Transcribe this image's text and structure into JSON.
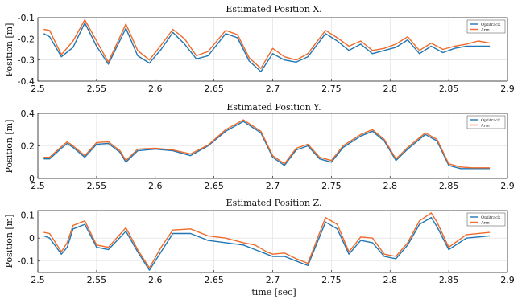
{
  "chart_data": [
    {
      "type": "line",
      "title": "Estimated Position X.",
      "ylabel": "Position [m]",
      "xlabel": "",
      "xlim": [
        2.5,
        2.9
      ],
      "ylim": [
        -0.4,
        -0.1
      ],
      "xticks": [
        "2.5",
        "2.55",
        "2.6",
        "2.65",
        "2.7",
        "2.75",
        "2.8",
        "2.85",
        "2.9"
      ],
      "xtick_values": [
        2.5,
        2.55,
        2.6,
        2.65,
        2.7,
        2.75,
        2.8,
        2.85,
        2.9
      ],
      "yticks": [
        "-0.1",
        "-0.2",
        "-0.3",
        "-0.4"
      ],
      "ytick_values": [
        -0.1,
        -0.2,
        -0.3,
        -0.4
      ],
      "grid": true,
      "legend_position": "top-right",
      "x": [
        2.505,
        2.51,
        2.52,
        2.53,
        2.54,
        2.55,
        2.56,
        2.575,
        2.585,
        2.595,
        2.605,
        2.615,
        2.625,
        2.635,
        2.645,
        2.66,
        2.67,
        2.68,
        2.69,
        2.7,
        2.71,
        2.72,
        2.73,
        2.745,
        2.755,
        2.765,
        2.775,
        2.785,
        2.795,
        2.805,
        2.815,
        2.825,
        2.835,
        2.845,
        2.855,
        2.865,
        2.875,
        2.885
      ],
      "series": [
        {
          "name": "Optitrack",
          "color": "#1f77b4",
          "values": [
            -0.175,
            -0.19,
            -0.285,
            -0.24,
            -0.125,
            -0.235,
            -0.32,
            -0.15,
            -0.28,
            -0.315,
            -0.25,
            -0.17,
            -0.225,
            -0.295,
            -0.28,
            -0.175,
            -0.195,
            -0.305,
            -0.355,
            -0.27,
            -0.3,
            -0.31,
            -0.285,
            -0.175,
            -0.21,
            -0.255,
            -0.225,
            -0.27,
            -0.255,
            -0.24,
            -0.205,
            -0.27,
            -0.235,
            -0.265,
            -0.245,
            -0.235,
            -0.235,
            -0.235
          ]
        },
        {
          "name": "Arm",
          "color": "#ee6a2a",
          "values": [
            -0.155,
            -0.16,
            -0.275,
            -0.21,
            -0.11,
            -0.21,
            -0.31,
            -0.13,
            -0.255,
            -0.3,
            -0.23,
            -0.155,
            -0.2,
            -0.28,
            -0.26,
            -0.16,
            -0.18,
            -0.29,
            -0.34,
            -0.245,
            -0.285,
            -0.3,
            -0.27,
            -0.16,
            -0.195,
            -0.235,
            -0.21,
            -0.255,
            -0.245,
            -0.225,
            -0.19,
            -0.255,
            -0.22,
            -0.25,
            -0.235,
            -0.225,
            -0.21,
            -0.22
          ]
        }
      ]
    },
    {
      "type": "line",
      "title": "Estimated Position Y.",
      "ylabel": "Position [m]",
      "xlabel": "",
      "xlim": [
        2.5,
        2.9
      ],
      "ylim": [
        0,
        0.4
      ],
      "xticks": [
        "2.5",
        "2.55",
        "2.6",
        "2.65",
        "2.7",
        "2.75",
        "2.8",
        "2.85",
        "2.9"
      ],
      "xtick_values": [
        2.5,
        2.55,
        2.6,
        2.65,
        2.7,
        2.75,
        2.8,
        2.85,
        2.9
      ],
      "yticks": [
        "0",
        "0.2",
        "0.4"
      ],
      "ytick_values": [
        0,
        0.2,
        0.4
      ],
      "grid": true,
      "legend_position": "top-right",
      "x": [
        2.505,
        2.51,
        2.52,
        2.525,
        2.53,
        2.54,
        2.55,
        2.56,
        2.57,
        2.575,
        2.585,
        2.6,
        2.615,
        2.63,
        2.645,
        2.66,
        2.675,
        2.69,
        2.7,
        2.71,
        2.72,
        2.73,
        2.74,
        2.75,
        2.76,
        2.775,
        2.785,
        2.795,
        2.805,
        2.815,
        2.83,
        2.84,
        2.85,
        2.86,
        2.87,
        2.885
      ],
      "series": [
        {
          "name": "Optitrack",
          "color": "#1f77b4",
          "values": [
            0.12,
            0.12,
            0.185,
            0.215,
            0.19,
            0.13,
            0.21,
            0.215,
            0.16,
            0.1,
            0.17,
            0.18,
            0.17,
            0.14,
            0.2,
            0.29,
            0.35,
            0.28,
            0.13,
            0.08,
            0.175,
            0.2,
            0.12,
            0.1,
            0.19,
            0.26,
            0.29,
            0.23,
            0.11,
            0.18,
            0.27,
            0.23,
            0.08,
            0.06,
            0.06,
            0.06
          ]
        },
        {
          "name": "Arm",
          "color": "#ee6a2a",
          "values": [
            0.13,
            0.13,
            0.195,
            0.225,
            0.2,
            0.14,
            0.22,
            0.225,
            0.17,
            0.11,
            0.18,
            0.185,
            0.175,
            0.15,
            0.205,
            0.3,
            0.36,
            0.29,
            0.14,
            0.09,
            0.185,
            0.21,
            0.13,
            0.11,
            0.2,
            0.27,
            0.3,
            0.24,
            0.12,
            0.19,
            0.28,
            0.24,
            0.09,
            0.07,
            0.065,
            0.065
          ]
        }
      ]
    },
    {
      "type": "line",
      "title": "Estimated Position Z.",
      "ylabel": "Position [m]",
      "xlabel": "time [sec]",
      "xlim": [
        2.5,
        2.9
      ],
      "ylim": [
        -0.15,
        0.12
      ],
      "xticks": [
        "2.5",
        "2.55",
        "2.6",
        "2.65",
        "2.7",
        "2.75",
        "2.8",
        "2.85",
        "2.9"
      ],
      "xtick_values": [
        2.5,
        2.55,
        2.6,
        2.65,
        2.7,
        2.75,
        2.8,
        2.85,
        2.9
      ],
      "yticks": [
        "0.1",
        "0",
        "-0.1"
      ],
      "ytick_values": [
        0.1,
        0,
        -0.1
      ],
      "grid": true,
      "legend_position": "top-right",
      "x": [
        2.505,
        2.51,
        2.52,
        2.525,
        2.53,
        2.54,
        2.55,
        2.56,
        2.575,
        2.585,
        2.595,
        2.605,
        2.615,
        2.63,
        2.645,
        2.66,
        2.675,
        2.685,
        2.695,
        2.7,
        2.71,
        2.72,
        2.73,
        2.745,
        2.755,
        2.765,
        2.775,
        2.785,
        2.795,
        2.805,
        2.815,
        2.825,
        2.835,
        2.84,
        2.85,
        2.865,
        2.885
      ],
      "series": [
        {
          "name": "Optitrack",
          "color": "#1f77b4",
          "values": [
            0.01,
            0.0,
            -0.07,
            -0.04,
            0.04,
            0.06,
            -0.04,
            -0.05,
            0.03,
            -0.06,
            -0.14,
            -0.06,
            0.02,
            0.02,
            -0.01,
            -0.02,
            -0.03,
            -0.05,
            -0.07,
            -0.08,
            -0.08,
            -0.1,
            -0.12,
            0.07,
            0.04,
            -0.07,
            -0.01,
            -0.02,
            -0.08,
            -0.09,
            -0.03,
            0.06,
            0.09,
            0.05,
            -0.05,
            0.0,
            0.01
          ]
        },
        {
          "name": "Arm",
          "color": "#ee6a2a",
          "values": [
            0.025,
            0.02,
            -0.06,
            -0.02,
            0.055,
            0.075,
            -0.03,
            -0.04,
            0.045,
            -0.05,
            -0.13,
            -0.04,
            0.035,
            0.04,
            0.01,
            0.0,
            -0.02,
            -0.03,
            -0.06,
            -0.07,
            -0.065,
            -0.09,
            -0.11,
            0.09,
            0.06,
            -0.06,
            0.005,
            0.0,
            -0.07,
            -0.08,
            -0.02,
            0.075,
            0.11,
            0.07,
            -0.04,
            0.015,
            0.025
          ]
        }
      ]
    }
  ]
}
